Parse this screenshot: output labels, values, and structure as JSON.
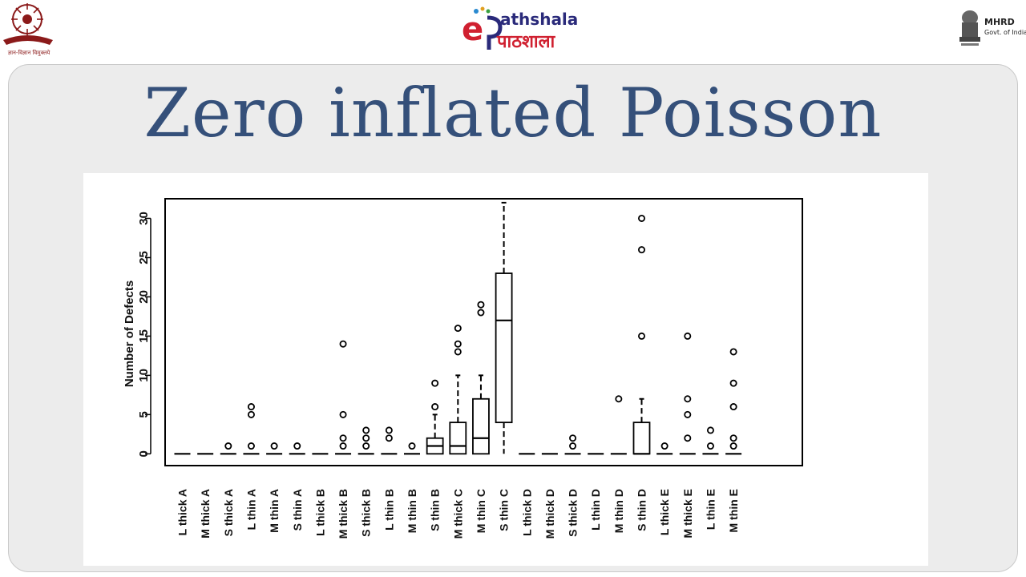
{
  "header": {
    "ugc_caption": "ज्ञान-विज्ञान विमुक्तये",
    "brand_en": "athshala",
    "brand_hi": "पाठशाला",
    "mhrd_label": "MHRD",
    "mhrd_sub": "Govt. of India"
  },
  "slide": {
    "title": "Zero inflated Poisson"
  },
  "chart_data": {
    "type": "boxplot",
    "ylabel": "Number of Defects",
    "ylim": [
      -1.5,
      32.5
    ],
    "yticks": [
      0,
      5,
      10,
      15,
      20,
      25,
      30
    ],
    "categories": [
      "L thick A",
      "M thick A",
      "S thick A",
      "L thin A",
      "M thin A",
      "S thin A",
      "L thick B",
      "M thick B",
      "S thick B",
      "L thin B",
      "M thin B",
      "S thin B",
      "M thick C",
      "M thin C",
      "S thin C",
      "L thick D",
      "M thick D",
      "S thick D",
      "L thin D",
      "M thin D",
      "S thin D",
      "L thick E",
      "M thick E",
      "L thin E",
      "M thin E"
    ],
    "boxes": [
      {
        "q1": 0,
        "median": 0,
        "q3": 0,
        "whisker_low": 0,
        "whisker_high": 0,
        "outliers": []
      },
      {
        "q1": 0,
        "median": 0,
        "q3": 0,
        "whisker_low": 0,
        "whisker_high": 0,
        "outliers": []
      },
      {
        "q1": 0,
        "median": 0,
        "q3": 0,
        "whisker_low": 0,
        "whisker_high": 0,
        "outliers": [
          1
        ]
      },
      {
        "q1": 0,
        "median": 0,
        "q3": 0,
        "whisker_low": 0,
        "whisker_high": 0,
        "outliers": [
          1,
          5,
          6
        ]
      },
      {
        "q1": 0,
        "median": 0,
        "q3": 0,
        "whisker_low": 0,
        "whisker_high": 0,
        "outliers": [
          1
        ]
      },
      {
        "q1": 0,
        "median": 0,
        "q3": 0,
        "whisker_low": 0,
        "whisker_high": 0,
        "outliers": [
          1
        ]
      },
      {
        "q1": 0,
        "median": 0,
        "q3": 0,
        "whisker_low": 0,
        "whisker_high": 0,
        "outliers": []
      },
      {
        "q1": 0,
        "median": 0,
        "q3": 0,
        "whisker_low": 0,
        "whisker_high": 0,
        "outliers": [
          1,
          2,
          5,
          14
        ]
      },
      {
        "q1": 0,
        "median": 0,
        "q3": 0,
        "whisker_low": 0,
        "whisker_high": 0,
        "outliers": [
          1,
          2,
          3
        ]
      },
      {
        "q1": 0,
        "median": 0,
        "q3": 0,
        "whisker_low": 0,
        "whisker_high": 0,
        "outliers": [
          2,
          3
        ]
      },
      {
        "q1": 0,
        "median": 0,
        "q3": 0,
        "whisker_low": 0,
        "whisker_high": 0,
        "outliers": [
          1
        ]
      },
      {
        "q1": 0,
        "median": 1,
        "q3": 2,
        "whisker_low": 0,
        "whisker_high": 5,
        "outliers": [
          6,
          9
        ]
      },
      {
        "q1": 0,
        "median": 1,
        "q3": 4,
        "whisker_low": 0,
        "whisker_high": 10,
        "outliers": [
          13,
          14,
          16
        ]
      },
      {
        "q1": 0,
        "median": 2,
        "q3": 7,
        "whisker_low": 0,
        "whisker_high": 10,
        "outliers": [
          18,
          19
        ]
      },
      {
        "q1": 4,
        "median": 17,
        "q3": 23,
        "whisker_low": 0,
        "whisker_high": 32,
        "outliers": []
      },
      {
        "q1": 0,
        "median": 0,
        "q3": 0,
        "whisker_low": 0,
        "whisker_high": 0,
        "outliers": []
      },
      {
        "q1": 0,
        "median": 0,
        "q3": 0,
        "whisker_low": 0,
        "whisker_high": 0,
        "outliers": []
      },
      {
        "q1": 0,
        "median": 0,
        "q3": 0,
        "whisker_low": 0,
        "whisker_high": 0,
        "outliers": [
          1,
          2
        ]
      },
      {
        "q1": 0,
        "median": 0,
        "q3": 0,
        "whisker_low": 0,
        "whisker_high": 0,
        "outliers": []
      },
      {
        "q1": 0,
        "median": 0,
        "q3": 0,
        "whisker_low": 0,
        "whisker_high": 0,
        "outliers": [
          7
        ]
      },
      {
        "q1": 0,
        "median": 0,
        "q3": 4,
        "whisker_low": 0,
        "whisker_high": 7,
        "outliers": [
          15,
          26,
          30
        ]
      },
      {
        "q1": 0,
        "median": 0,
        "q3": 0,
        "whisker_low": 0,
        "whisker_high": 0,
        "outliers": [
          1
        ]
      },
      {
        "q1": 0,
        "median": 0,
        "q3": 0,
        "whisker_low": 0,
        "whisker_high": 0,
        "outliers": [
          2,
          5,
          7,
          15
        ]
      },
      {
        "q1": 0,
        "median": 0,
        "q3": 0,
        "whisker_low": 0,
        "whisker_high": 0,
        "outliers": [
          1,
          3
        ]
      },
      {
        "q1": 0,
        "median": 0,
        "q3": 0,
        "whisker_low": 0,
        "whisker_high": 0,
        "outliers": [
          1,
          2,
          6,
          9,
          13
        ]
      }
    ],
    "grid": false,
    "legend": "none"
  }
}
